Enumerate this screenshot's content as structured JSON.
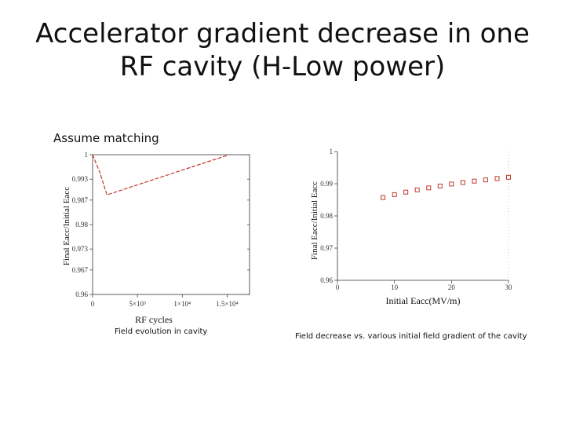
{
  "slide": {
    "title_line1": "Accelerator gradient decrease in one",
    "title_line2": "RF cavity (H-Low power)",
    "note": "Assume matching",
    "caption_left": "Field evolution in cavity",
    "caption_right": "Field decrease vs. various initial field gradient of the cavity"
  },
  "colors": {
    "series": "#c0392b",
    "axis": "#333333",
    "grid": "#999999"
  },
  "chart_data": [
    {
      "type": "line",
      "xlabel": "RF cycles",
      "ylabel": "Final Eacc/Initial Eacc",
      "xlim": [
        0,
        17500
      ],
      "ylim": [
        0.96,
        1.0
      ],
      "x_ticks": [
        {
          "value": 0,
          "label": "0"
        },
        {
          "value": 5000,
          "label": "5×10³"
        },
        {
          "value": 10000,
          "label": "1×10⁴"
        },
        {
          "value": 15000,
          "label": "1.5×10⁴"
        }
      ],
      "y_ticks": [
        {
          "value": 0.96,
          "label": "0.96"
        },
        {
          "value": 0.967,
          "label": "0.967"
        },
        {
          "value": 0.973,
          "label": "0.973"
        },
        {
          "value": 0.98,
          "label": "0.98"
        },
        {
          "value": 0.987,
          "label": "0.987"
        },
        {
          "value": 0.993,
          "label": "0.993"
        },
        {
          "value": 1.0,
          "label": "1"
        }
      ],
      "series": [
        {
          "x": [
            0,
            800,
            1600,
            15000
          ],
          "y": [
            1.0,
            0.995,
            0.9885,
            0.9998
          ]
        }
      ]
    },
    {
      "type": "scatter",
      "xlabel": "Initial Eacc(MV/m)",
      "ylabel": "Final Eacc/Initial Eacc",
      "xlim": [
        0,
        30
      ],
      "ylim": [
        0.96,
        1.0
      ],
      "x_ticks": [
        {
          "value": 0,
          "label": "0"
        },
        {
          "value": 10,
          "label": "10"
        },
        {
          "value": 20,
          "label": "20"
        },
        {
          "value": 30,
          "label": "30"
        }
      ],
      "y_ticks": [
        {
          "value": 0.96,
          "label": "0.96"
        },
        {
          "value": 0.97,
          "label": "0.97"
        },
        {
          "value": 0.98,
          "label": "0.98"
        },
        {
          "value": 0.99,
          "label": "0.99"
        },
        {
          "value": 1.0,
          "label": "1"
        }
      ],
      "series": [
        {
          "x": [
            8,
            10,
            12,
            14,
            16,
            18,
            20,
            22,
            24,
            26,
            28,
            30
          ],
          "y": [
            0.9857,
            0.9866,
            0.9874,
            0.9881,
            0.9887,
            0.9893,
            0.9899,
            0.9904,
            0.9908,
            0.9912,
            0.9916,
            0.992
          ]
        }
      ]
    }
  ]
}
